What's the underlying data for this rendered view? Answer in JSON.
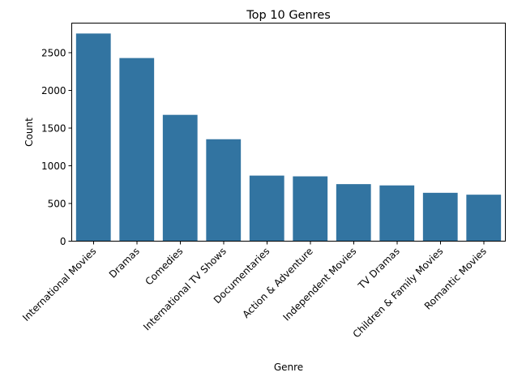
{
  "chart_data": {
    "type": "bar",
    "title": "Top 10 Genres",
    "xlabel": "Genre",
    "ylabel": "Count",
    "categories": [
      "International Movies",
      "Dramas",
      "Comedies",
      "International TV Shows",
      "Documentaries",
      "Action & Adventure",
      "Independent Movies",
      "TV Dramas",
      "Children & Family Movies",
      "Romantic Movies"
    ],
    "values": [
      2752,
      2427,
      1674,
      1351,
      869,
      859,
      756,
      739,
      641,
      616
    ],
    "yticks": [
      0,
      500,
      1000,
      1500,
      2000,
      2500
    ],
    "ylim": [
      0,
      2890
    ],
    "bar_color": "#3274a1",
    "grid": false,
    "legend": "none"
  }
}
